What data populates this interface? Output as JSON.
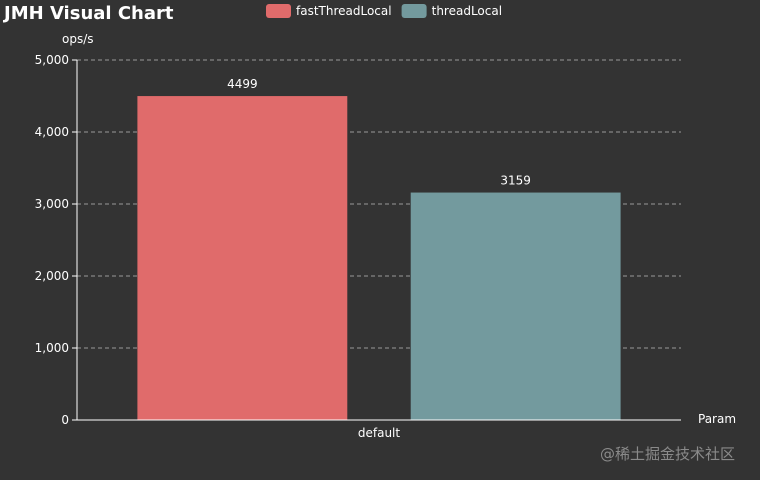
{
  "title": "JMH Visual Chart",
  "watermark": "@稀土掘金技术社区",
  "chart_data": {
    "type": "bar",
    "title": "JMH Visual Chart",
    "xlabel": "Param",
    "ylabel": "ops/s",
    "categories": [
      "default"
    ],
    "ylim": [
      0,
      5000
    ],
    "yticks": [
      0,
      1000,
      2000,
      3000,
      4000,
      5000
    ],
    "ytick_labels": [
      "0",
      "1,000",
      "2,000",
      "3,000",
      "4,000",
      "5,000"
    ],
    "grid": true,
    "legend_position": "top",
    "series": [
      {
        "name": "fastThreadLocal",
        "values": [
          4499
        ],
        "color": "#e06b6b"
      },
      {
        "name": "threadLocal",
        "values": [
          3159
        ],
        "color": "#739a9e"
      }
    ]
  }
}
